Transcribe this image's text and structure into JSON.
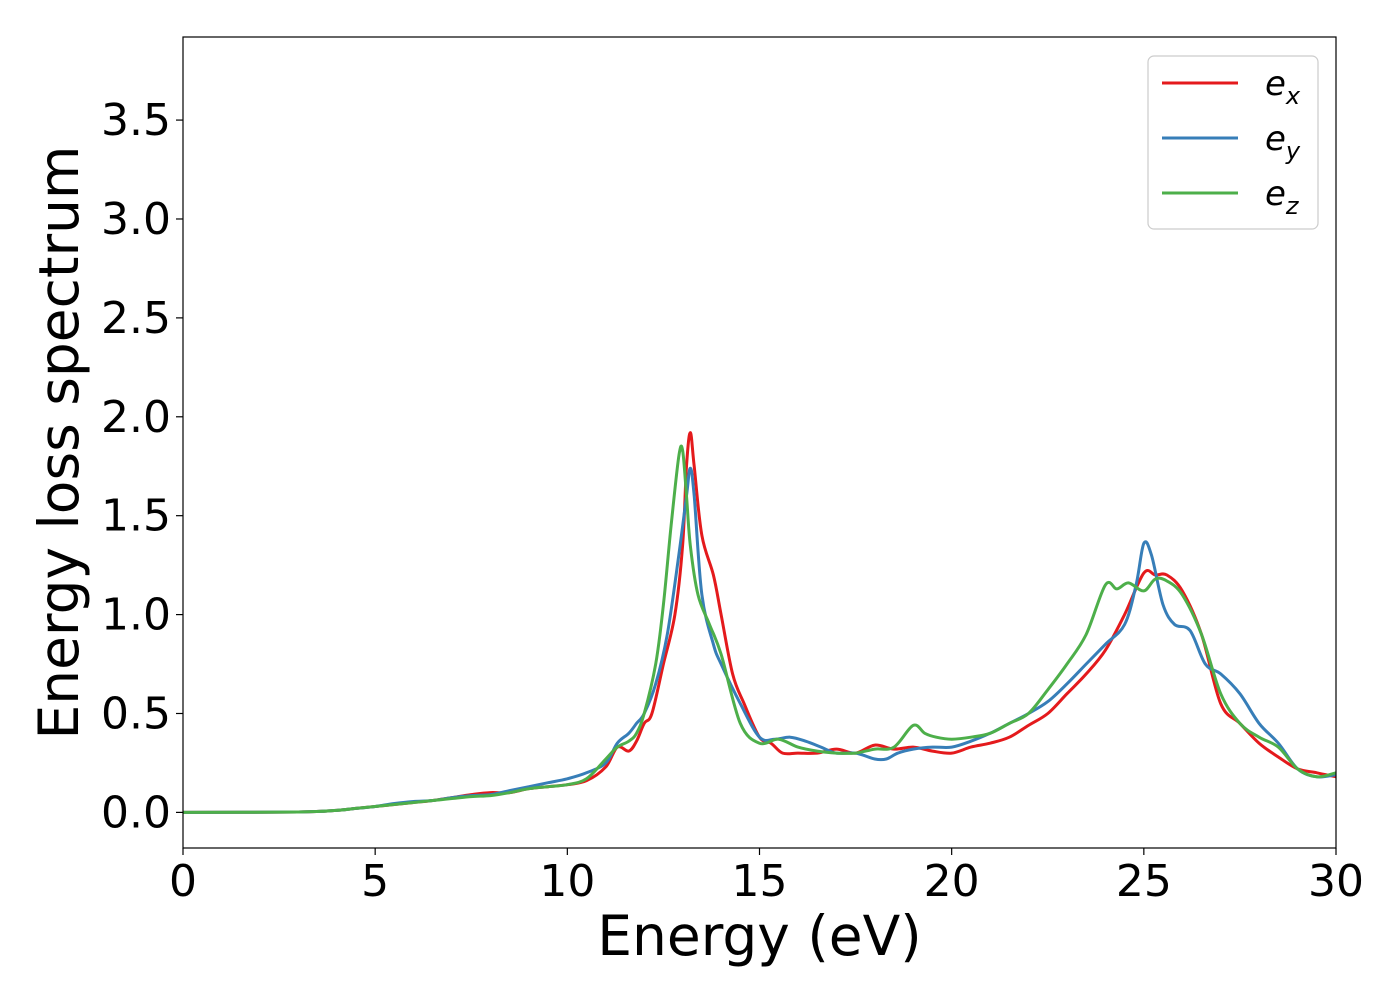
{
  "chart_data": {
    "type": "line",
    "xlabel": "Energy (eV)",
    "ylabel": "Energy loss spectrum",
    "xlim": [
      0,
      30
    ],
    "ylim": [
      -0.18,
      3.92
    ],
    "xticks": [
      "0",
      "5",
      "10",
      "15",
      "20",
      "25",
      "30"
    ],
    "yticks": [
      "0.0",
      "0.5",
      "1.0",
      "1.5",
      "2.0",
      "2.5",
      "3.0",
      "3.5"
    ],
    "grid": false,
    "legend_position": "top-right",
    "series": [
      {
        "name": "e_x",
        "legend_base": "e",
        "legend_sub": "x",
        "color": "#e41a1c",
        "x": [
          0,
          3,
          4,
          4.5,
          5,
          5.5,
          6,
          6.5,
          7,
          7.5,
          8,
          8.5,
          9,
          9.5,
          10,
          10.5,
          11,
          11.3,
          11.6,
          11.8,
          12,
          12.2,
          12.5,
          12.8,
          13,
          13.1,
          13.2,
          13.3,
          13.5,
          13.8,
          14,
          14.3,
          14.6,
          15,
          15.3,
          15.6,
          16,
          16.5,
          17,
          17.5,
          18,
          18.5,
          19,
          19.5,
          20,
          20.5,
          21,
          21.5,
          22,
          22.5,
          23,
          23.5,
          24,
          24.5,
          25,
          25.3,
          25.6,
          26,
          26.5,
          27,
          27.5,
          28,
          28.5,
          29,
          29.5,
          30
        ],
        "y": [
          0,
          0.002,
          0.01,
          0.02,
          0.03,
          0.04,
          0.05,
          0.06,
          0.075,
          0.09,
          0.1,
          0.1,
          0.12,
          0.13,
          0.14,
          0.16,
          0.23,
          0.33,
          0.31,
          0.36,
          0.45,
          0.5,
          0.75,
          1.0,
          1.35,
          1.75,
          1.92,
          1.75,
          1.4,
          1.2,
          1.0,
          0.7,
          0.55,
          0.38,
          0.35,
          0.3,
          0.3,
          0.3,
          0.32,
          0.3,
          0.34,
          0.32,
          0.33,
          0.31,
          0.3,
          0.33,
          0.35,
          0.38,
          0.44,
          0.5,
          0.6,
          0.7,
          0.82,
          1.0,
          1.21,
          1.2,
          1.2,
          1.12,
          0.9,
          0.55,
          0.45,
          0.35,
          0.28,
          0.22,
          0.2,
          0.18
        ]
      },
      {
        "name": "e_y",
        "legend_base": "e",
        "legend_sub": "y",
        "color": "#377eb8",
        "x": [
          0,
          3,
          4,
          4.5,
          5,
          5.5,
          6,
          6.5,
          7,
          7.5,
          8,
          8.5,
          9,
          9.5,
          10,
          10.5,
          11,
          11.3,
          11.6,
          11.8,
          12,
          12.3,
          12.6,
          12.9,
          13.1,
          13.2,
          13.3,
          13.5,
          13.8,
          14,
          14.5,
          15,
          15.4,
          15.8,
          16.2,
          16.6,
          17,
          17.5,
          18,
          18.3,
          18.6,
          19,
          19.5,
          20,
          20.5,
          21,
          21.5,
          22,
          22.5,
          23,
          23.5,
          24,
          24.5,
          24.8,
          25,
          25.2,
          25.5,
          25.8,
          26.2,
          26.6,
          27,
          27.5,
          28,
          28.5,
          29,
          29.5,
          30
        ],
        "y": [
          0,
          0.002,
          0.01,
          0.02,
          0.03,
          0.045,
          0.055,
          0.06,
          0.075,
          0.085,
          0.09,
          0.11,
          0.13,
          0.15,
          0.17,
          0.2,
          0.25,
          0.35,
          0.4,
          0.45,
          0.5,
          0.65,
          0.9,
          1.3,
          1.6,
          1.74,
          1.6,
          1.1,
          0.85,
          0.75,
          0.55,
          0.38,
          0.37,
          0.38,
          0.36,
          0.33,
          0.3,
          0.3,
          0.27,
          0.27,
          0.3,
          0.32,
          0.33,
          0.33,
          0.36,
          0.4,
          0.45,
          0.5,
          0.56,
          0.65,
          0.75,
          0.85,
          0.95,
          1.15,
          1.36,
          1.3,
          1.05,
          0.95,
          0.92,
          0.75,
          0.7,
          0.6,
          0.45,
          0.35,
          0.22,
          0.18,
          0.19
        ]
      },
      {
        "name": "e_z",
        "legend_base": "e",
        "legend_sub": "z",
        "color": "#4daf4a",
        "x": [
          0,
          3,
          4,
          4.5,
          5,
          5.5,
          6,
          6.5,
          7,
          7.5,
          8,
          8.5,
          9,
          9.5,
          10,
          10.5,
          11,
          11.3,
          11.6,
          11.8,
          12,
          12.3,
          12.5,
          12.7,
          12.9,
          13,
          13.1,
          13.2,
          13.4,
          13.7,
          14,
          14.5,
          15,
          15.5,
          16,
          16.5,
          17,
          17.5,
          18,
          18.5,
          19,
          19.3,
          19.6,
          20,
          20.5,
          21,
          21.5,
          22,
          22.5,
          23,
          23.5,
          24,
          24.3,
          24.6,
          25,
          25.3,
          25.6,
          26,
          26.5,
          27,
          27.5,
          28,
          28.5,
          29,
          29.5,
          30
        ],
        "y": [
          0,
          0.002,
          0.01,
          0.02,
          0.03,
          0.04,
          0.05,
          0.06,
          0.07,
          0.08,
          0.085,
          0.1,
          0.12,
          0.13,
          0.14,
          0.17,
          0.27,
          0.33,
          0.36,
          0.4,
          0.5,
          0.75,
          1.05,
          1.45,
          1.8,
          1.83,
          1.6,
          1.35,
          1.1,
          0.95,
          0.8,
          0.45,
          0.35,
          0.37,
          0.33,
          0.31,
          0.3,
          0.3,
          0.32,
          0.33,
          0.44,
          0.4,
          0.38,
          0.37,
          0.38,
          0.4,
          0.45,
          0.5,
          0.62,
          0.75,
          0.9,
          1.15,
          1.13,
          1.16,
          1.12,
          1.18,
          1.17,
          1.1,
          0.9,
          0.6,
          0.45,
          0.38,
          0.33,
          0.22,
          0.18,
          0.2
        ]
      }
    ]
  }
}
